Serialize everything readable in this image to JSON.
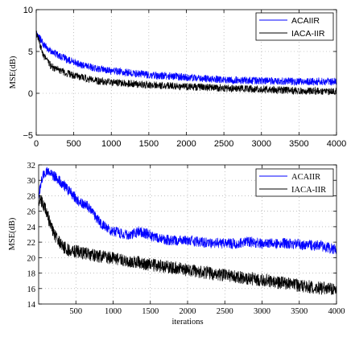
{
  "chart_data": [
    {
      "type": "line",
      "title": "",
      "xlabel": "",
      "ylabel": "MSE(dB)",
      "xlim": [
        0,
        4000
      ],
      "ylim": [
        -5,
        10
      ],
      "xticks": [
        0,
        500,
        1000,
        1500,
        2000,
        2500,
        3000,
        3500,
        4000
      ],
      "yticks": [
        -5,
        0,
        5,
        10
      ],
      "grid": true,
      "legend_position": "top-right",
      "series": [
        {
          "name": "ACAIIR",
          "color": "#0000ff",
          "noise": 0.45,
          "x": [
            0,
            100,
            200,
            400,
            600,
            800,
            1000,
            1500,
            2000,
            2500,
            3000,
            3500,
            4000
          ],
          "y": [
            7.3,
            5.8,
            5.0,
            4.1,
            3.4,
            3.0,
            2.7,
            2.2,
            1.9,
            1.6,
            1.5,
            1.4,
            1.4
          ]
        },
        {
          "name": "IACA-IIR",
          "color": "#000000",
          "noise": 0.45,
          "x": [
            0,
            100,
            200,
            400,
            600,
            800,
            1000,
            1500,
            2000,
            2500,
            3000,
            3500,
            4000
          ],
          "y": [
            7.2,
            4.5,
            3.2,
            2.4,
            1.9,
            1.5,
            1.3,
            1.0,
            0.8,
            0.6,
            0.5,
            0.3,
            0.2
          ]
        }
      ]
    },
    {
      "type": "line",
      "title": "",
      "xlabel": "iterations",
      "ylabel": "MSE(dB)",
      "xlim": [
        0,
        4000
      ],
      "ylim": [
        14,
        32
      ],
      "xticks": [
        500,
        1000,
        1500,
        2000,
        2500,
        3000,
        3500,
        4000
      ],
      "yticks": [
        14,
        16,
        18,
        20,
        22,
        24,
        26,
        28,
        30,
        32
      ],
      "grid": true,
      "legend_position": "top-right",
      "series": [
        {
          "name": "ACAIIR",
          "color": "#0000ff",
          "noise": 0.7,
          "x": [
            0,
            50,
            100,
            150,
            250,
            350,
            450,
            550,
            620,
            680,
            750,
            850,
            1000,
            1200,
            1350,
            1450,
            1550,
            1700,
            2000,
            2300,
            2600,
            2800,
            3000,
            3200,
            3500,
            3800,
            4000
          ],
          "y": [
            28.0,
            30.5,
            31.2,
            31.0,
            30.2,
            29.2,
            28.2,
            27.2,
            26.9,
            26.5,
            25.5,
            24.2,
            23.4,
            22.9,
            23.4,
            23.1,
            22.6,
            22.3,
            22.2,
            21.9,
            21.8,
            22.1,
            21.8,
            21.9,
            21.7,
            21.5,
            21.0
          ]
        },
        {
          "name": "IACA-IIR",
          "color": "#000000",
          "noise": 0.85,
          "x": [
            0,
            50,
            100,
            150,
            200,
            250,
            300,
            400,
            600,
            800,
            1000,
            1200,
            1500,
            2000,
            2500,
            3000,
            3500,
            4000
          ],
          "y": [
            27.5,
            27.0,
            26.0,
            24.5,
            23.2,
            22.3,
            21.6,
            21.0,
            20.6,
            20.2,
            19.9,
            19.6,
            19.1,
            18.4,
            17.7,
            17.1,
            16.4,
            15.8
          ]
        }
      ]
    }
  ]
}
